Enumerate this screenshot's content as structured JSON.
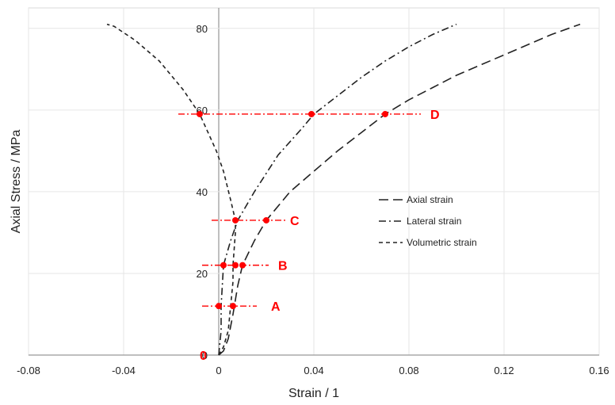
{
  "chart_data": {
    "type": "line",
    "title": "",
    "xlabel": "Strain / 1",
    "ylabel": "Axial Stress / MPa",
    "xlim": [
      -0.08,
      0.16
    ],
    "ylim": [
      0,
      85
    ],
    "x_ticks": [
      "-0.08",
      "-0.04",
      "0",
      "0.04",
      "0.08",
      "0.12",
      "0.16"
    ],
    "x_tick_values": [
      -0.08,
      -0.04,
      0,
      0.04,
      0.08,
      0.12,
      0.16
    ],
    "y_ticks": [
      "0",
      "20",
      "40",
      "60",
      "80"
    ],
    "y_tick_values": [
      0,
      20,
      40,
      60,
      80
    ],
    "grid": true,
    "legend_position": "right-center",
    "colors": {
      "series": "#222222",
      "markers": "#ff0000"
    },
    "series": [
      {
        "name": "Axial strain",
        "dash": "long-dash",
        "points": [
          [
            0,
            0
          ],
          [
            0.002,
            1
          ],
          [
            0.004,
            4
          ],
          [
            0.006,
            10
          ],
          [
            0.008,
            17
          ],
          [
            0.01,
            22
          ],
          [
            0.015,
            28
          ],
          [
            0.02,
            33
          ],
          [
            0.03,
            40
          ],
          [
            0.04,
            45
          ],
          [
            0.05,
            50
          ],
          [
            0.06,
            54.5
          ],
          [
            0.07,
            59
          ],
          [
            0.08,
            62.5
          ],
          [
            0.09,
            65.5
          ],
          [
            0.1,
            68.5
          ],
          [
            0.11,
            71
          ],
          [
            0.12,
            73.5
          ],
          [
            0.13,
            76
          ],
          [
            0.14,
            78.5
          ],
          [
            0.152,
            81
          ]
        ]
      },
      {
        "name": "Lateral strain",
        "dash": "dash-dot",
        "points": [
          [
            0,
            0
          ],
          [
            0.001,
            6
          ],
          [
            0.001,
            12
          ],
          [
            0.002,
            22
          ],
          [
            0.005,
            28
          ],
          [
            0.008,
            33
          ],
          [
            0.015,
            40
          ],
          [
            0.025,
            49
          ],
          [
            0.035,
            55.5
          ],
          [
            0.04,
            59
          ],
          [
            0.05,
            63.5
          ],
          [
            0.06,
            68
          ],
          [
            0.07,
            72
          ],
          [
            0.08,
            75.5
          ],
          [
            0.09,
            78.5
          ],
          [
            0.1,
            81
          ]
        ]
      },
      {
        "name": "Volumetric strain",
        "dash": "short-dash",
        "points": [
          [
            0,
            0
          ],
          [
            0.002,
            2
          ],
          [
            0.004,
            6
          ],
          [
            0.005,
            12
          ],
          [
            0.006,
            18
          ],
          [
            0.006,
            22
          ],
          [
            0.007,
            30
          ],
          [
            0.007,
            33
          ],
          [
            0.005,
            38
          ],
          [
            0.002,
            45
          ],
          [
            -0.001,
            50
          ],
          [
            -0.008,
            59
          ],
          [
            -0.015,
            65
          ],
          [
            -0.025,
            72
          ],
          [
            -0.035,
            77
          ],
          [
            -0.044,
            80.5
          ],
          [
            -0.047,
            81
          ]
        ]
      }
    ],
    "markers": [
      {
        "label": "A",
        "y": 12,
        "points_x": [
          0.0,
          0.006
        ],
        "line_x": [
          -0.007,
          0.016
        ],
        "label_x": 0.022
      },
      {
        "label": "B",
        "y": 22,
        "points_x": [
          0.002,
          0.007,
          0.01
        ],
        "line_x": [
          -0.007,
          0.021
        ],
        "label_x": 0.025
      },
      {
        "label": "C",
        "y": 33,
        "points_x": [
          0.007,
          0.02
        ],
        "line_x": [
          -0.003,
          0.029
        ],
        "label_x": 0.03
      },
      {
        "label": "D",
        "y": 59,
        "points_x": [
          -0.008,
          0.039,
          0.07
        ],
        "line_x": [
          -0.017,
          0.085
        ],
        "label_x": 0.089
      }
    ],
    "origin_point_label": "0"
  }
}
